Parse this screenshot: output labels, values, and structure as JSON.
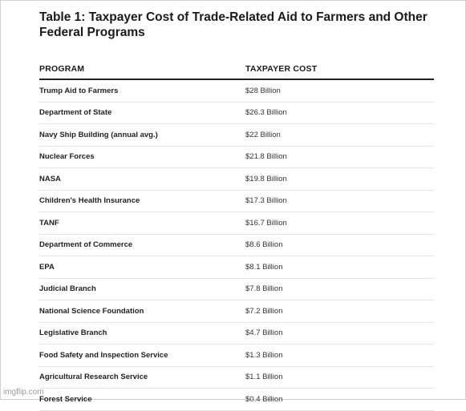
{
  "title": "Table 1: Taxpayer Cost of Trade-Related Aid to Farmers and Other Federal Programs",
  "columns": {
    "program": "PROGRAM",
    "cost": "TAXPAYER COST"
  },
  "rows": [
    {
      "program": "Trump Aid to Farmers",
      "cost": "$28 Billion"
    },
    {
      "program": "Department of State",
      "cost": "$26.3 Billion"
    },
    {
      "program": "Navy Ship Building (annual avg.)",
      "cost": "$22 Billion"
    },
    {
      "program": "Nuclear Forces",
      "cost": "$21.8 Billion"
    },
    {
      "program": "NASA",
      "cost": "$19.8 Billion"
    },
    {
      "program": "Children's Health Insurance",
      "cost": "$17.3 Billion"
    },
    {
      "program": "TANF",
      "cost": "$16.7 Billion"
    },
    {
      "program": "Department of Commerce",
      "cost": "$8.6 Billion"
    },
    {
      "program": "EPA",
      "cost": "$8.1 Billion"
    },
    {
      "program": "Judicial Branch",
      "cost": "$7.8 Billion"
    },
    {
      "program": "National Science Foundation",
      "cost": "$7.2 Billion"
    },
    {
      "program": "Legislative Branch",
      "cost": "$4.7 Billion"
    },
    {
      "program": "Food Safety and Inspection Service",
      "cost": "$1.3 Billion"
    },
    {
      "program": "Agricultural Research Service",
      "cost": "$1.1 Billion"
    },
    {
      "program": "Forest Service",
      "cost": "$0.4 Billion"
    }
  ],
  "watermark": "imgflip.com"
}
